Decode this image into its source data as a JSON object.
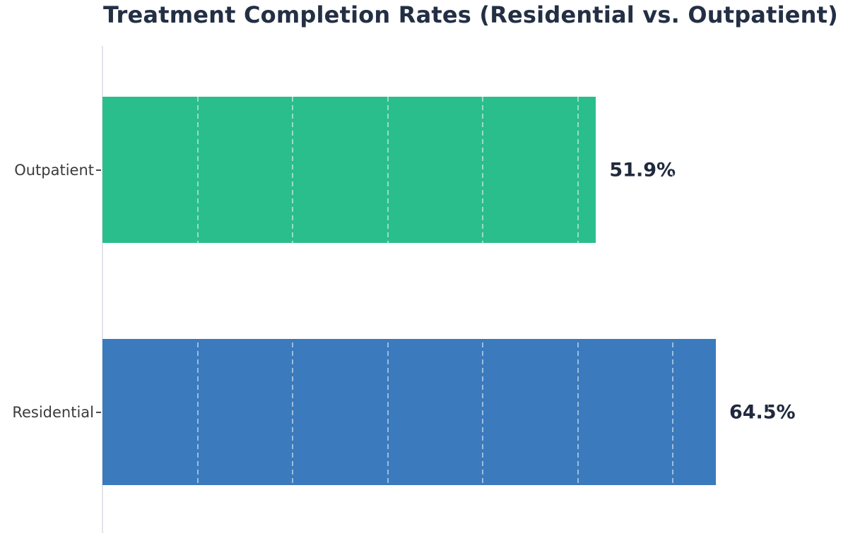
{
  "chart_data": {
    "type": "bar",
    "orientation": "horizontal",
    "title": "Treatment Completion Rates (Residential vs. Outpatient)",
    "categories": [
      "Outpatient",
      "Residential"
    ],
    "values": [
      51.9,
      64.5
    ],
    "value_labels": [
      "51.9%",
      "64.5%"
    ],
    "bar_colors": [
      "#2abe8c",
      "#3b7abd"
    ],
    "xlabel": "",
    "ylabel": "",
    "xlim": [
      0,
      78.4
    ],
    "grid": {
      "axis": "x",
      "interval": 10,
      "style": "dashed",
      "color": "rgba(255,255,255,0.5)",
      "visible_over_bars_only": true
    },
    "legend_position": "none",
    "colors": {
      "title": "#232f44",
      "category_label": "#3b3b3b",
      "value_label": "#20293d",
      "axis_line": "#e3e5ea",
      "background": "#ffffff"
    }
  }
}
